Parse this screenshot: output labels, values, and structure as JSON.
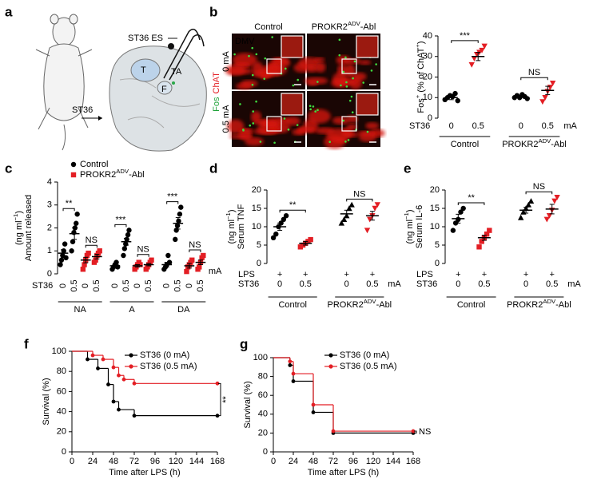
{
  "panel_letters": [
    "a",
    "b",
    "c",
    "d",
    "e",
    "f",
    "g"
  ],
  "diagram": {
    "electrode_label": "ST36 ES",
    "muscle_labels": [
      "T",
      "TA",
      "F"
    ],
    "site_label": "ST36"
  },
  "images": {
    "columns": [
      "Control",
      [
        "PROKR2",
        {
          "sup": "ADV"
        },
        "-Abl"
      ]
    ],
    "rows": [
      "0 mA",
      "0.5 mA"
    ],
    "stain_labels": [
      "Fos",
      "ChAT"
    ],
    "region_label": "DMV"
  },
  "chart_data": [
    {
      "type": "dot",
      "ylabel": [
        [
          "Fos",
          {
            "sup": "+"
          },
          " (% of ChAT",
          {
            "sup": "+"
          },
          ")"
        ]
      ],
      "ylim": [
        0,
        40
      ],
      "yticks": [
        0,
        10,
        20,
        30,
        40
      ],
      "row_label": "ST36",
      "categories": [
        "0",
        "0.5",
        "0",
        "0.5"
      ],
      "unit": "mA",
      "groups": [
        "Control",
        [
          "PROKR2",
          {
            "sup": "ADV"
          },
          "-Abl"
        ]
      ],
      "values": [
        10,
        30,
        10.5,
        13.5
      ],
      "errors": [
        1,
        2,
        0.5,
        2
      ],
      "points": [
        [
          9,
          10,
          11,
          10.5,
          12,
          8.5
        ],
        [
          26,
          29,
          31,
          32,
          33,
          35
        ],
        [
          10,
          11,
          10,
          11.5,
          10.5,
          9.5
        ],
        [
          8,
          10,
          13,
          15,
          17
        ]
      ],
      "colors": [
        "#000000",
        "#e31e24",
        "#000000",
        "#e31e24"
      ],
      "markers": [
        "circle",
        "inv-triangle",
        "circle",
        "inv-triangle"
      ],
      "comparisons": [
        "***",
        "NS"
      ]
    },
    {
      "type": "dot",
      "ylabel": [
        "Amount released",
        [
          "(ng ml",
          {
            "sup": "−1"
          },
          ")"
        ]
      ],
      "ylim": [
        0,
        4
      ],
      "yticks": [
        0,
        1,
        2,
        3,
        4
      ],
      "row_label": "ST36",
      "categories": [
        "0",
        "0.5",
        "0",
        "0.5",
        "0",
        "0.5",
        "0",
        "0.5",
        "0",
        "0.5",
        "0",
        "0.5"
      ],
      "unit": "mA",
      "groups": [
        "NA",
        "A",
        "DA"
      ],
      "series": [
        {
          "name": "Control",
          "color": "#000000"
        },
        {
          "name": [
            "PROKR2",
            {
              "sup": "ADV"
            },
            "-Abl"
          ],
          "color": "#e31e24"
        }
      ],
      "values": [
        0.9,
        1.75,
        0.6,
        0.75,
        0.35,
        1.4,
        0.35,
        0.4,
        0.4,
        2.2,
        0.35,
        0.5
      ],
      "errors": [
        0.15,
        0.25,
        0.12,
        0.1,
        0.05,
        0.15,
        0.05,
        0.05,
        0.1,
        0.25,
        0.1,
        0.1
      ],
      "points": [
        [
          0.4,
          0.6,
          0.8,
          1.0,
          1.3,
          0.7
        ],
        [
          1.0,
          1.4,
          1.8,
          2.0,
          2.2,
          2.6
        ],
        [
          0.2,
          0.4,
          0.6,
          0.8,
          0.9
        ],
        [
          0.5,
          0.6,
          0.8,
          0.9,
          1.0
        ],
        [
          0.2,
          0.3,
          0.4,
          0.5,
          0.3
        ],
        [
          0.8,
          1.1,
          1.3,
          1.5,
          1.7,
          1.9
        ],
        [
          0.2,
          0.3,
          0.4,
          0.5,
          0.4
        ],
        [
          0.2,
          0.3,
          0.4,
          0.5,
          0.6
        ],
        [
          0.2,
          0.3,
          0.4,
          0.8,
          0.5
        ],
        [
          1.5,
          1.9,
          2.1,
          2.3,
          2.6,
          2.9
        ],
        [
          0.1,
          0.3,
          0.4,
          0.5,
          0.6
        ],
        [
          0.2,
          0.3,
          0.5,
          0.7,
          0.8
        ]
      ],
      "colors": [
        "#000000",
        "#000000",
        "#e31e24",
        "#e31e24",
        "#000000",
        "#000000",
        "#e31e24",
        "#e31e24",
        "#000000",
        "#000000",
        "#e31e24",
        "#e31e24"
      ],
      "markers": [
        "circle",
        "circle",
        "square",
        "square",
        "circle",
        "circle",
        "square",
        "square",
        "circle",
        "circle",
        "square",
        "square"
      ],
      "comparisons": [
        "**",
        "NS",
        "***",
        "NS",
        "***",
        "NS"
      ]
    },
    {
      "type": "dot",
      "ylabel": [
        "Serum TNF",
        [
          "(ng ml",
          {
            "sup": "−1"
          },
          ")"
        ]
      ],
      "ylim": [
        0,
        20
      ],
      "yticks": [
        0,
        5,
        10,
        15,
        20
      ],
      "extra_row": {
        "label": "LPS",
        "values": [
          "+",
          "+",
          "+",
          "+"
        ]
      },
      "row_label": "ST36",
      "categories": [
        "0",
        "0.5",
        "0",
        "0.5"
      ],
      "unit": "mA",
      "groups": [
        "Control",
        [
          "PROKR2",
          {
            "sup": "ADV"
          },
          "-Abl"
        ]
      ],
      "values": [
        10,
        5.5,
        13.5,
        13
      ],
      "errors": [
        1,
        0.5,
        1,
        1.2
      ],
      "points": [
        [
          7,
          8,
          10,
          11,
          12,
          13
        ],
        [
          4.5,
          5,
          5.5,
          6,
          6.5
        ],
        [
          11,
          12,
          13,
          15,
          16
        ],
        [
          9,
          12,
          13,
          15,
          16
        ]
      ],
      "colors": [
        "#000000",
        "#e31e24",
        "#000000",
        "#e31e24"
      ],
      "markers": [
        "circle",
        "square",
        "triangle",
        "inv-triangle"
      ],
      "comparisons": [
        "**",
        "NS"
      ]
    },
    {
      "type": "dot",
      "ylabel": [
        "Serum IL-6",
        [
          "(ng ml",
          {
            "sup": "−1"
          },
          ")"
        ]
      ],
      "ylim": [
        0,
        20
      ],
      "yticks": [
        0,
        5,
        10,
        15,
        20
      ],
      "extra_row": {
        "label": "LPS",
        "values": [
          "+",
          "+",
          "+",
          "+"
        ]
      },
      "row_label": "ST36",
      "categories": [
        "0",
        "0.5",
        "0",
        "0.5"
      ],
      "unit": "mA",
      "groups": [
        "Control",
        [
          "PROKR2",
          {
            "sup": "ADV"
          },
          "-Abl"
        ]
      ],
      "values": [
        12.2,
        7,
        14.5,
        14.8
      ],
      "errors": [
        1.2,
        0.7,
        0.8,
        1.3
      ],
      "points": [
        [
          9,
          11,
          12,
          14,
          15
        ],
        [
          4.5,
          6,
          7,
          8,
          9
        ],
        [
          12.5,
          14,
          15,
          16,
          17
        ],
        [
          12,
          13,
          14.5,
          17,
          18
        ]
      ],
      "colors": [
        "#000000",
        "#e31e24",
        "#000000",
        "#e31e24"
      ],
      "markers": [
        "circle",
        "square",
        "triangle",
        "inv-triangle"
      ],
      "comparisons": [
        "**",
        "NS"
      ]
    },
    {
      "type": "step",
      "xlabel": "Time after LPS (h)",
      "ylabel": [
        "Survival (%)"
      ],
      "xlim": [
        0,
        168
      ],
      "xticks": [
        0,
        24,
        48,
        72,
        96,
        120,
        144,
        168
      ],
      "ylim": [
        0,
        100
      ],
      "yticks": [
        0,
        20,
        40,
        60,
        80,
        100
      ],
      "series": [
        {
          "name": "ST36 (0 mA)",
          "color": "#000000",
          "x": [
            0,
            18,
            30,
            42,
            48,
            54,
            72,
            168
          ],
          "values": [
            100,
            92,
            83,
            67,
            50,
            42,
            36,
            36
          ]
        },
        {
          "name": "ST36 (0.5 mA)",
          "color": "#e31e24",
          "x": [
            0,
            24,
            36,
            48,
            54,
            60,
            72,
            168
          ],
          "values": [
            100,
            96,
            92,
            84,
            76,
            72,
            68,
            68
          ]
        }
      ],
      "annotation": "**"
    },
    {
      "type": "step",
      "xlabel": "Time after LPS (h)",
      "ylabel": [
        "Survival (%)"
      ],
      "xlim": [
        0,
        168
      ],
      "xticks": [
        0,
        24,
        48,
        72,
        96,
        120,
        144,
        168
      ],
      "ylim": [
        0,
        100
      ],
      "yticks": [
        0,
        20,
        40,
        60,
        80,
        100
      ],
      "series": [
        {
          "name": "ST36 (0 mA)",
          "color": "#000000",
          "x": [
            0,
            20,
            24,
            48,
            72,
            168
          ],
          "values": [
            100,
            92,
            75,
            42,
            20,
            20
          ]
        },
        {
          "name": "ST36 (0.5 mA)",
          "color": "#e31e24",
          "x": [
            0,
            20,
            24,
            48,
            72,
            168
          ],
          "values": [
            100,
            96,
            83,
            50,
            22,
            22
          ]
        }
      ],
      "annotation": "NS"
    }
  ]
}
